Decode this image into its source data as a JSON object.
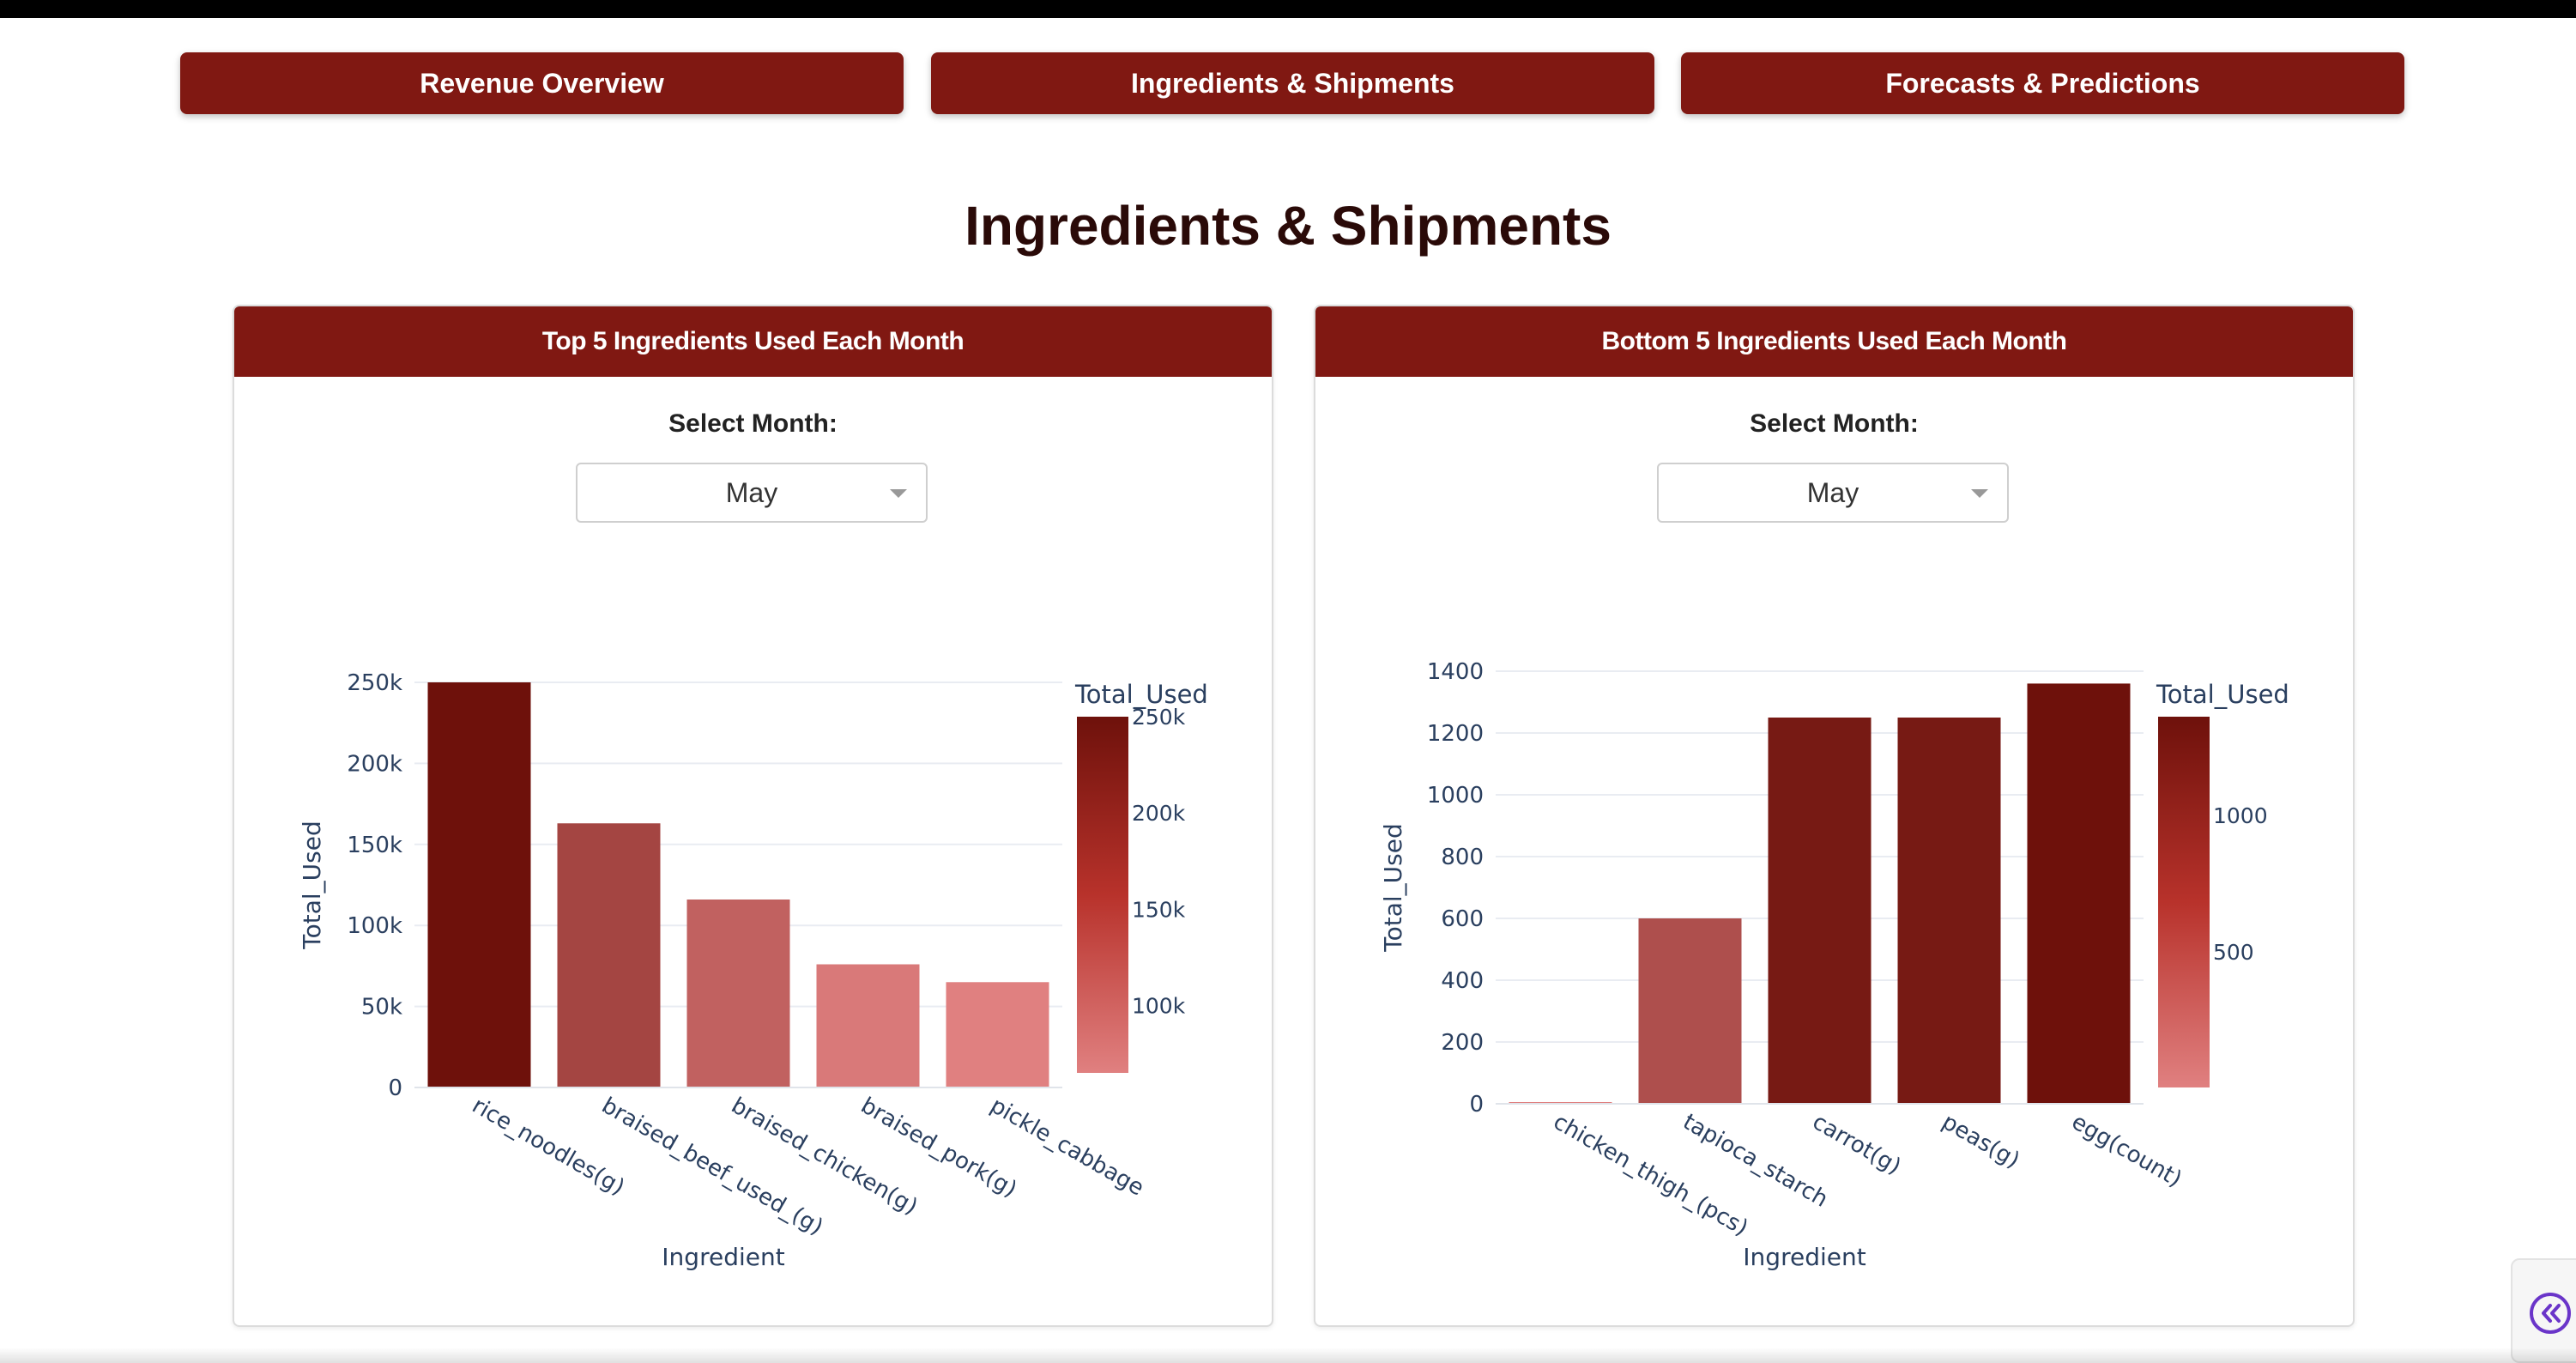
{
  "nav": {
    "revenue_label": "Revenue Overview",
    "ingredients_label": "Ingredients & Shipments",
    "forecasts_label": "Forecasts & Predictions"
  },
  "page_title": "Ingredients & Shipments",
  "theme": {
    "accent": "#801812"
  },
  "icons": {
    "collapse": "chevrons-left-icon",
    "dropdown": "caret-down-icon"
  },
  "cards": {
    "top": {
      "title": "Top 5 Ingredients Used Each Month",
      "select_label": "Select Month:",
      "selected_month": "May"
    },
    "bottom": {
      "title": "Bottom 5 Ingredients Used Each Month",
      "select_label": "Select Month:",
      "selected_month": "May"
    }
  },
  "chart_data": [
    {
      "type": "bar",
      "categories": [
        "rice_noodles(g)",
        "braised_beef_used_(g)",
        "braised_chicken(g)",
        "braised_pork(g)",
        "pickle_cabbage"
      ],
      "values": [
        250000,
        163000,
        116000,
        76000,
        65000
      ],
      "xlabel": "Ingredient",
      "ylabel": "Total_Used",
      "ylim": [
        0,
        250000
      ],
      "yticks": [
        0,
        50000,
        100000,
        150000,
        200000,
        250000
      ],
      "ytick_labels": [
        "0",
        "50k",
        "100k",
        "150k",
        "200k",
        "250k"
      ],
      "colorbar": {
        "title": "Total_Used",
        "range": [
          65000,
          250000
        ],
        "ticks": [
          100000,
          150000,
          200000,
          250000
        ],
        "tick_labels": [
          "100k",
          "150k",
          "200k",
          "250k"
        ]
      },
      "color_low": "#e08080",
      "color_high": "#6e110b"
    },
    {
      "type": "bar",
      "categories": [
        "chicken_thigh_(pcs)",
        "tapioca_starch",
        "carrot(g)",
        "peas(g)",
        "egg(count)"
      ],
      "values": [
        5,
        600,
        1250,
        1250,
        1360
      ],
      "xlabel": "Ingredient",
      "ylabel": "Total_Used",
      "ylim": [
        0,
        1400
      ],
      "yticks": [
        0,
        200,
        400,
        600,
        800,
        1000,
        1200,
        1400
      ],
      "ytick_labels": [
        "0",
        "200",
        "400",
        "600",
        "800",
        "1000",
        "1200",
        "1400"
      ],
      "colorbar": {
        "title": "Total_Used",
        "range": [
          5,
          1360
        ],
        "ticks": [
          500,
          1000
        ],
        "tick_labels": [
          "500",
          "1000"
        ]
      },
      "color_low": "#e08080",
      "color_high": "#6e110b"
    }
  ]
}
